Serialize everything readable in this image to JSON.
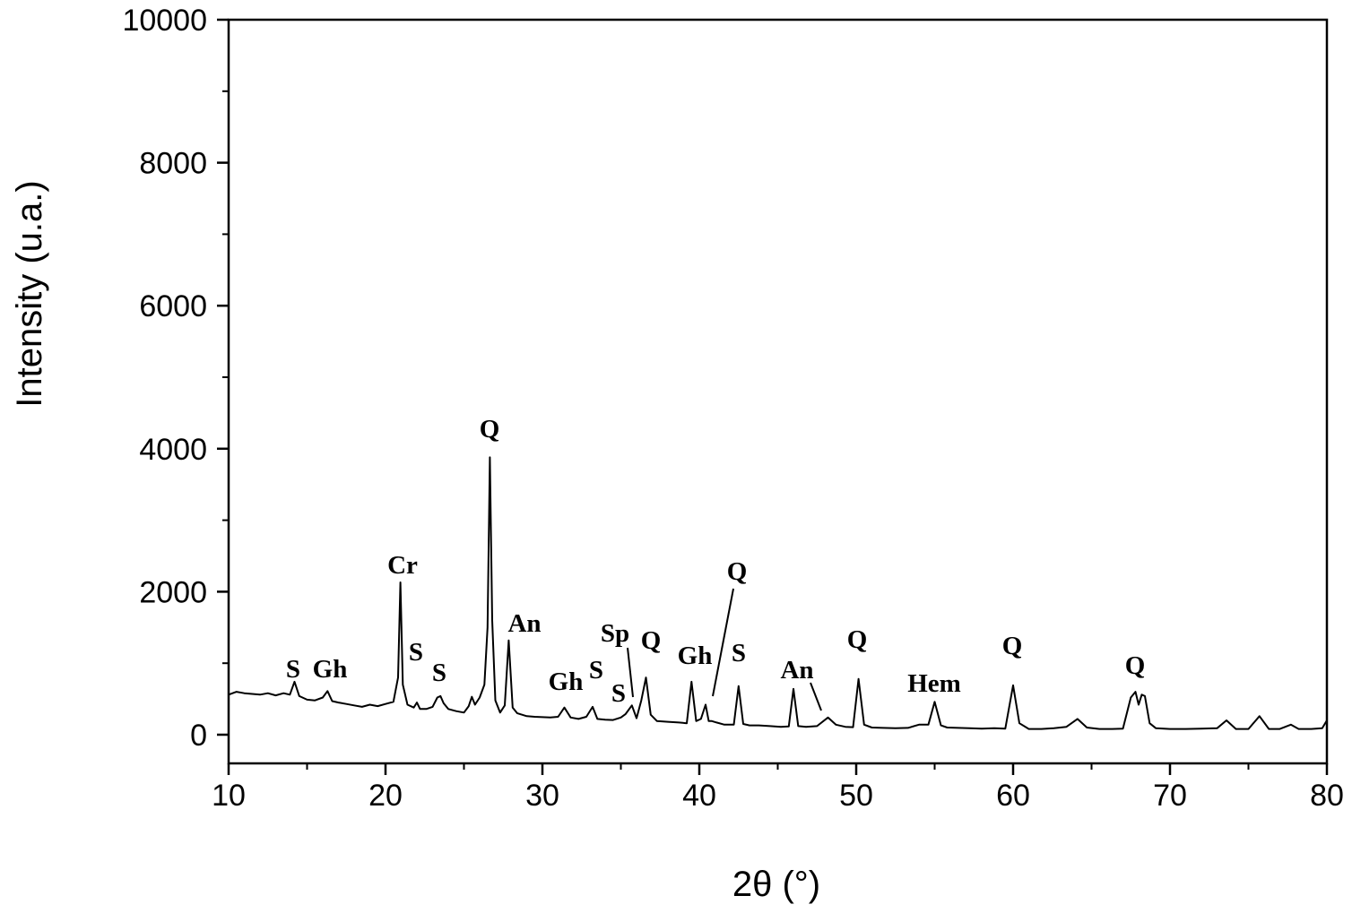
{
  "chart_data": {
    "type": "line",
    "title": "",
    "xlabel": "2θ (°)",
    "ylabel": "Intensity (u.a.)",
    "xlim": [
      10,
      80
    ],
    "ylim": [
      0,
      10000
    ],
    "xticks": [
      10,
      20,
      30,
      40,
      50,
      60,
      70,
      80
    ],
    "yticks": [
      0,
      2000,
      4000,
      6000,
      8000,
      10000
    ],
    "grid": false,
    "legend": "none",
    "line_color": "#000000",
    "series": [
      {
        "x": [
          10.0,
          10.5,
          11.0,
          11.5,
          12.0,
          12.5,
          13.0,
          13.5,
          13.9,
          14.2,
          14.5,
          15.0,
          15.5,
          16.0,
          16.3,
          16.6,
          17.0,
          17.5,
          18.0,
          18.5,
          19.0,
          19.5,
          20.0,
          20.5,
          20.8,
          20.95,
          21.1,
          21.4,
          21.8,
          22.0,
          22.2,
          22.6,
          23.0,
          23.3,
          23.5,
          23.7,
          24.0,
          24.5,
          25.0,
          25.3,
          25.5,
          25.7,
          26.0,
          26.3,
          26.5,
          26.65,
          26.8,
          27.0,
          27.3,
          27.6,
          27.85,
          28.1,
          28.4,
          29.0,
          29.5,
          30.0,
          30.5,
          31.0,
          31.4,
          31.8,
          32.3,
          32.8,
          33.2,
          33.5,
          34.0,
          34.5,
          35.0,
          35.3,
          35.7,
          36.0,
          36.3,
          36.6,
          36.9,
          37.3,
          38.0,
          38.7,
          39.2,
          39.5,
          39.8,
          40.1,
          40.4,
          40.6,
          40.8,
          41.1,
          41.6,
          42.2,
          42.5,
          42.8,
          43.2,
          43.8,
          44.5,
          45.2,
          45.7,
          46.0,
          46.3,
          46.8,
          47.5,
          48.2,
          48.7,
          49.3,
          49.8,
          50.15,
          50.5,
          51.0,
          51.7,
          52.5,
          53.3,
          54.0,
          54.6,
          55.0,
          55.4,
          55.8,
          56.5,
          57.2,
          58.0,
          58.8,
          59.5,
          60.0,
          60.4,
          61.0,
          61.8,
          62.6,
          63.4,
          64.1,
          64.7,
          65.5,
          66.3,
          67.0,
          67.5,
          67.8,
          68.0,
          68.2,
          68.4,
          68.7,
          69.1,
          70.0,
          71.0,
          72.0,
          73.0,
          73.6,
          74.2,
          75.0,
          75.7,
          76.3,
          77.0,
          77.7,
          78.2,
          79.0,
          79.7,
          80.0
        ],
        "y": [
          560,
          600,
          580,
          570,
          560,
          580,
          550,
          580,
          560,
          740,
          540,
          490,
          480,
          520,
          610,
          470,
          450,
          430,
          410,
          390,
          420,
          400,
          430,
          460,
          800,
          2130,
          700,
          420,
          380,
          450,
          360,
          360,
          390,
          520,
          540,
          440,
          360,
          330,
          310,
          400,
          530,
          420,
          520,
          700,
          1500,
          3880,
          1600,
          480,
          310,
          410,
          1320,
          380,
          300,
          260,
          250,
          245,
          240,
          250,
          380,
          240,
          220,
          250,
          390,
          220,
          210,
          205,
          240,
          290,
          410,
          230,
          480,
          800,
          280,
          190,
          180,
          170,
          160,
          740,
          190,
          220,
          420,
          190,
          190,
          170,
          140,
          140,
          680,
          150,
          130,
          130,
          120,
          110,
          115,
          640,
          120,
          110,
          120,
          240,
          140,
          110,
          105,
          780,
          140,
          100,
          95,
          90,
          95,
          140,
          140,
          460,
          130,
          100,
          95,
          90,
          85,
          90,
          85,
          690,
          160,
          80,
          80,
          90,
          110,
          220,
          100,
          80,
          80,
          85,
          520,
          600,
          420,
          560,
          540,
          160,
          90,
          80,
          80,
          85,
          90,
          200,
          80,
          80,
          260,
          80,
          80,
          140,
          80,
          80,
          90,
          200
        ]
      }
    ],
    "annotations": [
      {
        "text": "S"
      },
      {
        "text": "Gh"
      },
      {
        "text": "Cr"
      },
      {
        "text": "S"
      },
      {
        "text": "S"
      },
      {
        "text": "Q"
      },
      {
        "text": "An"
      },
      {
        "text": "Gh"
      },
      {
        "text": "S"
      },
      {
        "text": "S"
      },
      {
        "text": "Sp"
      },
      {
        "text": "Q"
      },
      {
        "text": "Gh"
      },
      {
        "text": "Q"
      },
      {
        "text": "S"
      },
      {
        "text": "An"
      },
      {
        "text": "Q"
      },
      {
        "text": "Hem"
      },
      {
        "text": "Q"
      },
      {
        "text": "Q"
      }
    ]
  }
}
